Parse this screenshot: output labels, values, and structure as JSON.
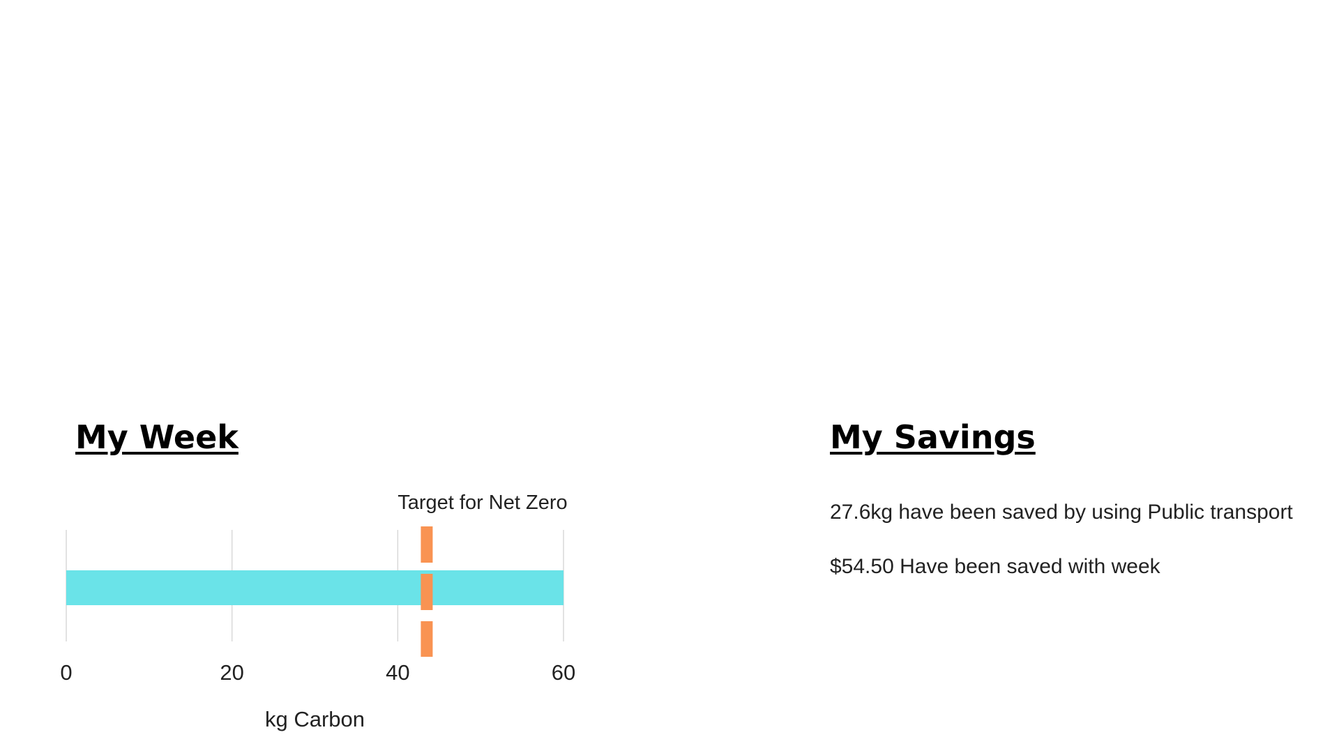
{
  "week": {
    "title": "My Week"
  },
  "savings": {
    "title": "My Savings",
    "lines": [
      "27.6kg have been saved by using Public transport",
      "$54.50 Have been saved with week"
    ]
  },
  "chart_data": {
    "type": "bar",
    "orientation": "horizontal",
    "categories": [
      ""
    ],
    "values": [
      60
    ],
    "xlim": [
      0,
      60
    ],
    "xticks": [
      0,
      20,
      40,
      60
    ],
    "xlabel": "kg Carbon",
    "grid": true,
    "reference_line": {
      "label": "Target for Net Zero",
      "value": 43.5,
      "style": "dashed"
    },
    "colors": {
      "bar": "#6ae3e8",
      "reference": "#f99352",
      "grid": "#d9d9d9"
    }
  }
}
